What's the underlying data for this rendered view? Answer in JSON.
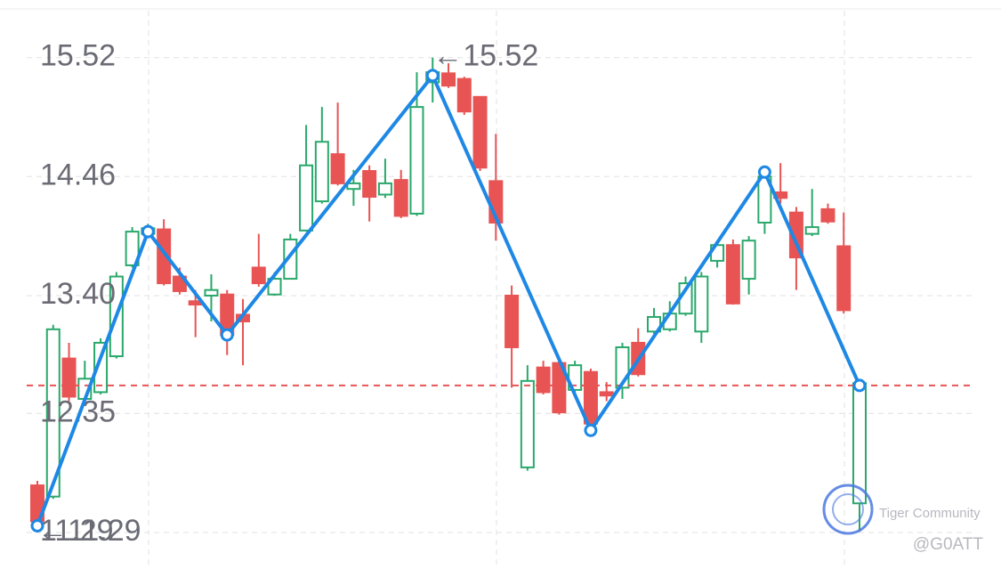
{
  "chart_data": {
    "type": "candlestick",
    "categories": [
      null,
      null,
      null,
      null,
      null,
      null,
      null,
      null,
      null,
      null,
      null,
      null,
      null,
      null,
      null,
      null,
      null,
      null,
      null,
      null,
      null,
      null,
      null,
      null,
      null,
      null,
      null,
      null,
      null,
      null,
      null,
      null,
      null,
      null,
      null,
      null,
      null,
      null,
      null,
      null,
      null,
      null,
      null,
      null,
      null,
      null,
      null,
      null,
      null,
      null,
      null,
      null,
      null
    ],
    "open": [
      11.71,
      11.61,
      12.84,
      12.48,
      12.54,
      12.86,
      13.67,
      13.95,
      13.99,
      13.57,
      13.35,
      13.4,
      13.41,
      13.23,
      13.65,
      13.41,
      13.55,
      13.98,
      14.24,
      14.66,
      14.35,
      14.51,
      14.3,
      14.43,
      14.13,
      15.3,
      15.38,
      15.33,
      15.17,
      14.42,
      13.4,
      11.87,
      12.76,
      12.8,
      12.56,
      12.72,
      12.54,
      12.58,
      12.98,
      13.08,
      13.1,
      13.24,
      13.08,
      13.71,
      13.85,
      13.55,
      14.05,
      14.32,
      14.14,
      13.95,
      14.17,
      13.84,
      11.55
    ],
    "high": [
      11.75,
      13.14,
      12.98,
      12.82,
      13.02,
      13.61,
      14.01,
      14.04,
      14.08,
      13.65,
      13.45,
      13.59,
      13.45,
      13.37,
      13.95,
      13.61,
      13.95,
      14.92,
      15.08,
      15.12,
      14.52,
      14.56,
      14.62,
      14.52,
      15.39,
      15.52,
      15.47,
      15.35,
      15.17,
      14.84,
      13.49,
      12.78,
      12.82,
      12.82,
      12.82,
      12.75,
      12.63,
      12.98,
      13.11,
      13.29,
      13.35,
      13.57,
      13.61,
      13.89,
      13.9,
      13.93,
      14.54,
      14.58,
      14.19,
      14.35,
      14.22,
      14.14,
      12.65
    ],
    "low": [
      11.29,
      11.59,
      12.46,
      12.46,
      12.52,
      12.84,
      13.65,
      13.93,
      13.49,
      13.41,
      13.03,
      13.17,
      12.87,
      12.78,
      13.48,
      13.4,
      13.55,
      13.97,
      14.22,
      14.38,
      14.2,
      14.06,
      14.27,
      14.09,
      14.11,
      15.12,
      15.25,
      15.01,
      14.51,
      13.89,
      12.58,
      11.84,
      12.52,
      12.34,
      12.54,
      12.24,
      12.46,
      12.48,
      12.68,
      13.06,
      13.08,
      13.22,
      12.98,
      13.65,
      13.32,
      13.41,
      13.95,
      14.22,
      13.45,
      13.93,
      14.04,
      13.24,
      11.3
    ],
    "close": [
      11.39,
      13.1,
      12.5,
      12.66,
      12.98,
      13.57,
      13.97,
      14.0,
      13.51,
      13.44,
      13.32,
      13.45,
      13.05,
      13.17,
      13.51,
      13.55,
      13.9,
      14.56,
      14.77,
      14.4,
      14.4,
      14.28,
      14.4,
      14.11,
      15.08,
      15.39,
      15.27,
      15.04,
      14.54,
      14.05,
      12.94,
      12.64,
      12.54,
      12.36,
      12.78,
      12.26,
      12.51,
      12.94,
      12.7,
      13.21,
      13.24,
      13.51,
      13.57,
      13.85,
      13.33,
      13.89,
      14.46,
      14.27,
      13.74,
      14.01,
      14.06,
      13.27,
      12.62
    ],
    "up_color": "#2aa86b",
    "down_color": "#e85454",
    "zigzag": {
      "color": "#1e88e5",
      "x": [
        0,
        7,
        12,
        25,
        35,
        46,
        52
      ],
      "values": [
        11.35,
        13.97,
        13.05,
        15.36,
        12.2,
        14.5,
        12.6
      ]
    },
    "price_line": {
      "value": 12.6,
      "color": "#e85454"
    },
    "annotations": [
      {
        "text": "←15.52",
        "value": 15.52
      },
      {
        "text": "←11.29",
        "value": 11.29
      }
    ],
    "ylim": [
      10.965,
      16.033
    ],
    "yticks": [
      15.52,
      14.46,
      {
        "value": 13.4,
        "label": "13.40"
      },
      12.35,
      11.29
    ],
    "grid": true
  },
  "watermark": {
    "brand": "Tiger Community",
    "user": "@G0ATT"
  }
}
